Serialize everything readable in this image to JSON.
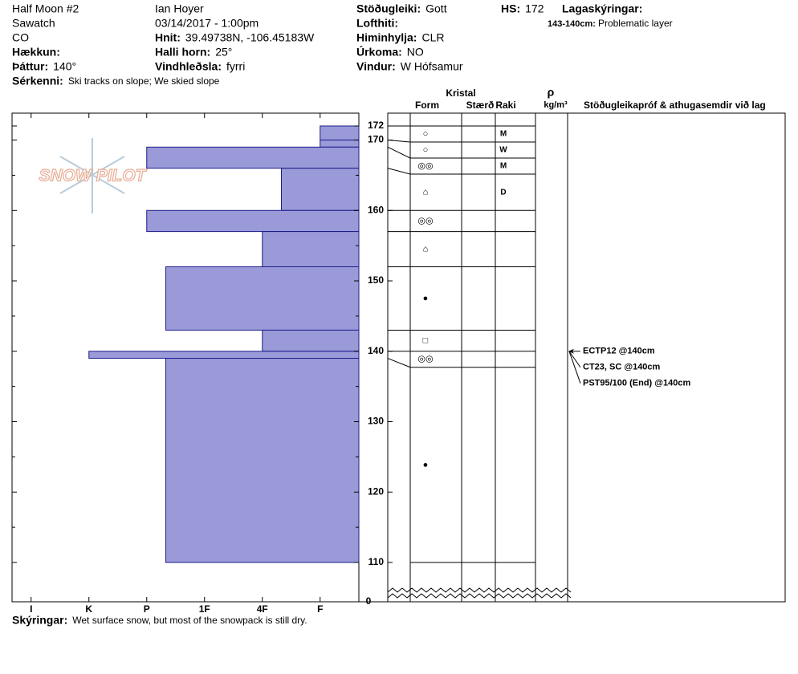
{
  "header": {
    "site": "Half Moon #2",
    "range": "Sawatch",
    "state": "CO",
    "elevation": {
      "label": "Hækkun:"
    },
    "aspect": {
      "label": "Þáttur:",
      "value": "140°"
    },
    "features": {
      "label": "Sérkenni:",
      "value": "Ski tracks on slope; We skied slope"
    },
    "observer": "Ian Hoyer",
    "datetime": "03/14/2017 - 1:00pm",
    "coords": {
      "label": "Hnit:",
      "value": "39.49738N, -106.45183W"
    },
    "slope": {
      "label": "Halli horn:",
      "value": "25°"
    },
    "wind_loading": {
      "label": "Vindhleðsla:",
      "value": "fyrri"
    },
    "stability": {
      "label": "Stöðugleiki:",
      "value": "Gott"
    },
    "air_temp": {
      "label": "Lofthiti:"
    },
    "sky": {
      "label": "Himinhylja:",
      "value": "CLR"
    },
    "precip": {
      "label": "Úrkoma:",
      "value": "NO"
    },
    "wind": {
      "label": "Vindur:",
      "value": "W Hófsamur"
    },
    "hs": {
      "label": "HS:",
      "value": 172
    },
    "layer_notes": {
      "label": "Lagaskýringar:",
      "items": [
        {
          "range": "143-140cm:",
          "text": "Problematic layer"
        }
      ]
    }
  },
  "notes": {
    "label": "Skýringar:",
    "value": "Wet surface snow, but most of the snowpack is still dry."
  },
  "chart_data": {
    "type": "hardness-profile",
    "logo": "SNOW PILOT",
    "color": "#9a9ad8",
    "layers": {
      "top": [
        172,
        170,
        169,
        166,
        160,
        157,
        152,
        143,
        140,
        139
      ],
      "hardness": [
        1,
        1,
        4,
        1.67,
        4,
        2,
        3.67,
        2,
        5,
        3.67
      ],
      "grain_form": [
        "○",
        "○",
        "◎◎",
        "⌂",
        "◎◎",
        "⌂",
        "●",
        "□",
        "◎◎",
        "●"
      ],
      "moisture": [
        "M",
        "W",
        "M",
        "D",
        null,
        null,
        null,
        null,
        null,
        null
      ]
    },
    "ylim": [
      110,
      172
    ],
    "yticks": [
      110,
      120,
      130,
      140,
      150,
      160,
      170,
      172
    ],
    "yminorticks": [
      115,
      125,
      135,
      145,
      155,
      165
    ],
    "ybreak": 0,
    "xlim": [
      6.33,
      0.33
    ],
    "xticks": [
      {
        "value": 6,
        "label": "I"
      },
      {
        "value": 5,
        "label": "K"
      },
      {
        "value": 4,
        "label": "P"
      },
      {
        "value": 3,
        "label": "1F"
      },
      {
        "value": 2,
        "label": "4F"
      },
      {
        "value": 1,
        "label": "F"
      }
    ],
    "table": {
      "group": "Kristal",
      "columns": [
        "Form",
        "Stærð",
        "Raki"
      ],
      "density": {
        "symbol": "ρ",
        "unit": "kg/m³"
      },
      "tests_header": "Stöðugleikapróf & athugasemdir við lag"
    },
    "tests": {
      "height": 140,
      "results": [
        "ECTP12 @140cm",
        "CT23, SC @140cm",
        "PST95/100 (End) @140cm"
      ]
    }
  }
}
